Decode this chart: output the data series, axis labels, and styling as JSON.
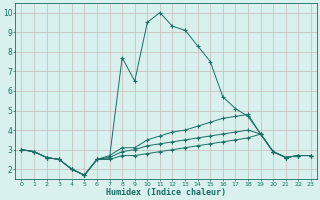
{
  "xlabel": "Humidex (Indice chaleur)",
  "xlim": [
    -0.5,
    23.5
  ],
  "ylim": [
    1.5,
    10.5
  ],
  "xticks": [
    0,
    1,
    2,
    3,
    4,
    5,
    6,
    7,
    8,
    9,
    10,
    11,
    12,
    13,
    14,
    15,
    16,
    17,
    18,
    19,
    20,
    21,
    22,
    23
  ],
  "yticks": [
    2,
    3,
    4,
    5,
    6,
    7,
    8,
    9,
    10
  ],
  "bg_color": "#d8f0ee",
  "grid_color": "#c8b8b8",
  "line_color": "#1a6e65",
  "lines": [
    {
      "x": [
        0,
        1,
        2,
        3,
        4,
        5,
        6,
        7,
        8,
        9,
        10,
        11,
        12,
        13,
        14,
        15,
        16,
        17,
        18,
        19,
        20,
        21,
        22,
        23
      ],
      "y": [
        3.0,
        2.9,
        2.6,
        2.5,
        2.0,
        1.7,
        2.5,
        2.6,
        7.7,
        6.5,
        9.5,
        10.0,
        9.3,
        9.1,
        8.3,
        7.5,
        5.7,
        5.1,
        4.7,
        3.8,
        2.9,
        2.6,
        2.7,
        2.7
      ]
    },
    {
      "x": [
        0,
        1,
        2,
        3,
        4,
        5,
        6,
        7,
        8,
        9,
        10,
        11,
        12,
        13,
        14,
        15,
        16,
        17,
        18,
        19,
        20,
        21,
        22,
        23
      ],
      "y": [
        3.0,
        2.9,
        2.6,
        2.5,
        2.0,
        1.7,
        2.5,
        2.7,
        3.1,
        3.1,
        3.5,
        3.7,
        3.9,
        4.0,
        4.2,
        4.4,
        4.6,
        4.7,
        4.8,
        3.8,
        2.9,
        2.6,
        2.7,
        2.7
      ]
    },
    {
      "x": [
        0,
        1,
        2,
        3,
        4,
        5,
        6,
        7,
        8,
        9,
        10,
        11,
        12,
        13,
        14,
        15,
        16,
        17,
        18,
        19,
        20,
        21,
        22,
        23
      ],
      "y": [
        3.0,
        2.9,
        2.6,
        2.5,
        2.0,
        1.7,
        2.5,
        2.6,
        2.9,
        3.0,
        3.2,
        3.3,
        3.4,
        3.5,
        3.6,
        3.7,
        3.8,
        3.9,
        4.0,
        3.8,
        2.9,
        2.6,
        2.7,
        2.7
      ]
    },
    {
      "x": [
        0,
        1,
        2,
        3,
        4,
        5,
        6,
        7,
        8,
        9,
        10,
        11,
        12,
        13,
        14,
        15,
        16,
        17,
        18,
        19,
        20,
        21,
        22,
        23
      ],
      "y": [
        3.0,
        2.9,
        2.6,
        2.5,
        2.0,
        1.7,
        2.5,
        2.5,
        2.7,
        2.7,
        2.8,
        2.9,
        3.0,
        3.1,
        3.2,
        3.3,
        3.4,
        3.5,
        3.6,
        3.8,
        2.9,
        2.6,
        2.7,
        2.7
      ]
    }
  ]
}
